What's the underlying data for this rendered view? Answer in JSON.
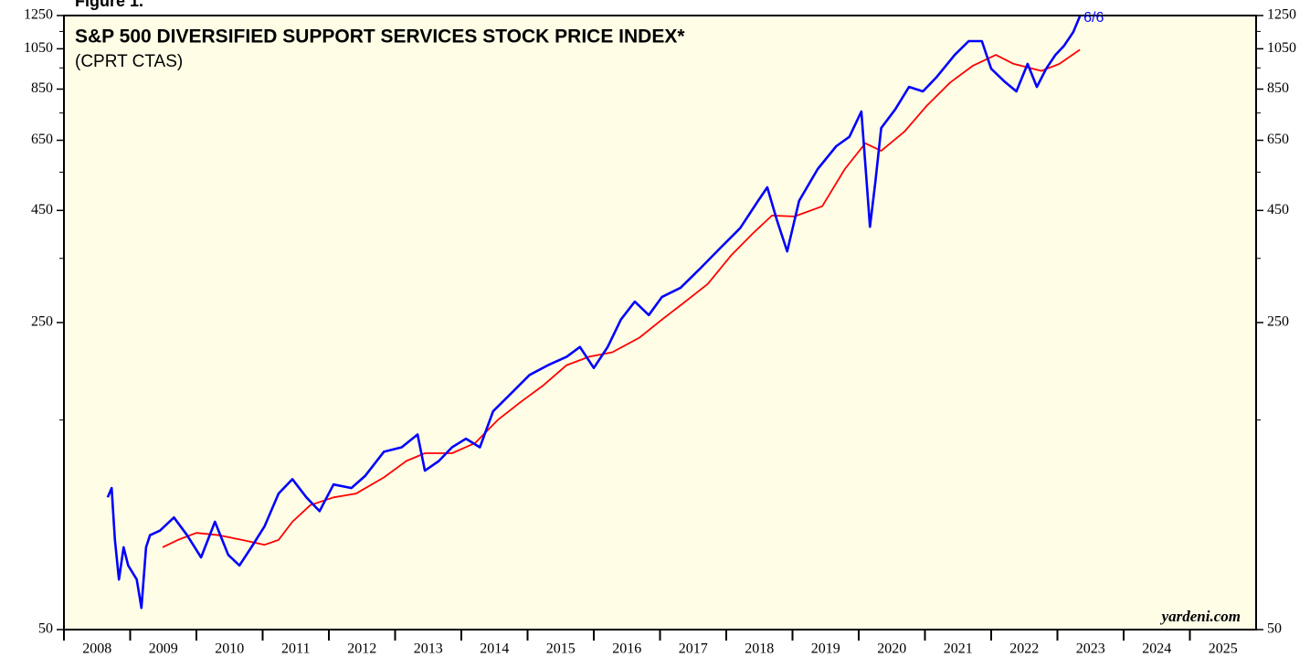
{
  "figure_label": "Figure 1.",
  "chart_data": {
    "type": "line",
    "title": "S&P 500 DIVERSIFIED SUPPORT SERVICES STOCK PRICE INDEX*",
    "subtitle": "(CPRT CTAS)",
    "source": "yardeni.com",
    "end_label": "6/6",
    "log_scale": true,
    "ylim": [
      50,
      1250
    ],
    "yticks": [
      50,
      250,
      450,
      650,
      850,
      1050,
      1250
    ],
    "minor_yticks": [
      150,
      350,
      550,
      750,
      950,
      1150
    ],
    "xlim": [
      2008,
      2026
    ],
    "xticks": [
      2008,
      2009,
      2010,
      2011,
      2012,
      2013,
      2014,
      2015,
      2016,
      2017,
      2018,
      2019,
      2020,
      2021,
      2022,
      2023,
      2024,
      2025
    ],
    "series": [
      {
        "color": "#0000ff",
        "x": [
          2008.66,
          2008.72,
          2008.77,
          2008.83,
          2008.9,
          2008.97,
          2009.1,
          2009.17,
          2009.24,
          2009.3,
          2009.45,
          2009.66,
          2009.86,
          2010.07,
          2010.28,
          2010.48,
          2010.65,
          2010.83,
          2011.03,
          2011.24,
          2011.45,
          2011.66,
          2011.86,
          2012.07,
          2012.34,
          2012.55,
          2012.83,
          2013.1,
          2013.34,
          2013.45,
          2013.66,
          2013.86,
          2014.07,
          2014.28,
          2014.48,
          2014.76,
          2015.03,
          2015.31,
          2015.59,
          2015.79,
          2016.0,
          2016.21,
          2016.41,
          2016.62,
          2016.83,
          2017.03,
          2017.31,
          2017.59,
          2017.93,
          2018.21,
          2018.48,
          2018.62,
          2018.76,
          2018.92,
          2019.1,
          2019.38,
          2019.66,
          2019.86,
          2020.04,
          2020.11,
          2020.17,
          2020.25,
          2020.34,
          2020.55,
          2020.76,
          2020.97,
          2021.17,
          2021.45,
          2021.66,
          2021.86,
          2022.0,
          2022.21,
          2022.38,
          2022.55,
          2022.69,
          2022.83,
          2022.97,
          2023.1,
          2023.24,
          2023.34
        ],
        "values": [
          100,
          105,
          80,
          65,
          77,
          70,
          65,
          56,
          77,
          82,
          84,
          90,
          82,
          73,
          88,
          74,
          70,
          77,
          86,
          102,
          110,
          100,
          93,
          107,
          105,
          112,
          127,
          130,
          139,
          115,
          121,
          130,
          136,
          130,
          157,
          173,
          190,
          200,
          209,
          220,
          197,
          220,
          254,
          279,
          260,
          286,
          300,
          330,
          372,
          410,
          473,
          508,
          430,
          363,
          473,
          559,
          630,
          662,
          756,
          546,
          413,
          520,
          693,
          764,
          860,
          840,
          903,
          1017,
          1093,
          1093,
          946,
          882,
          840,
          970,
          860,
          946,
          1017,
          1066,
          1147,
          1245
        ]
      },
      {
        "color": "#ff0000",
        "x": [
          2009.49,
          2009.72,
          2010.0,
          2010.34,
          2010.69,
          2011.03,
          2011.24,
          2011.45,
          2011.72,
          2012.07,
          2012.41,
          2012.83,
          2013.17,
          2013.45,
          2013.86,
          2014.21,
          2014.55,
          2014.9,
          2015.24,
          2015.59,
          2015.93,
          2016.28,
          2016.69,
          2017.03,
          2017.38,
          2017.72,
          2018.07,
          2018.41,
          2018.69,
          2019.03,
          2019.45,
          2019.79,
          2020.1,
          2020.34,
          2020.69,
          2021.03,
          2021.38,
          2021.72,
          2022.07,
          2022.34,
          2022.76,
          2023.03,
          2023.34
        ],
        "values": [
          77,
          80,
          83,
          82,
          80,
          78,
          80,
          88,
          96,
          100,
          102,
          111,
          121,
          126,
          126,
          133,
          150,
          165,
          180,
          200,
          209,
          214,
          231,
          254,
          279,
          306,
          355,
          400,
          438,
          436,
          460,
          559,
          640,
          615,
          680,
          780,
          880,
          960,
          1017,
          970,
          935,
          970,
          1045
        ]
      }
    ]
  }
}
